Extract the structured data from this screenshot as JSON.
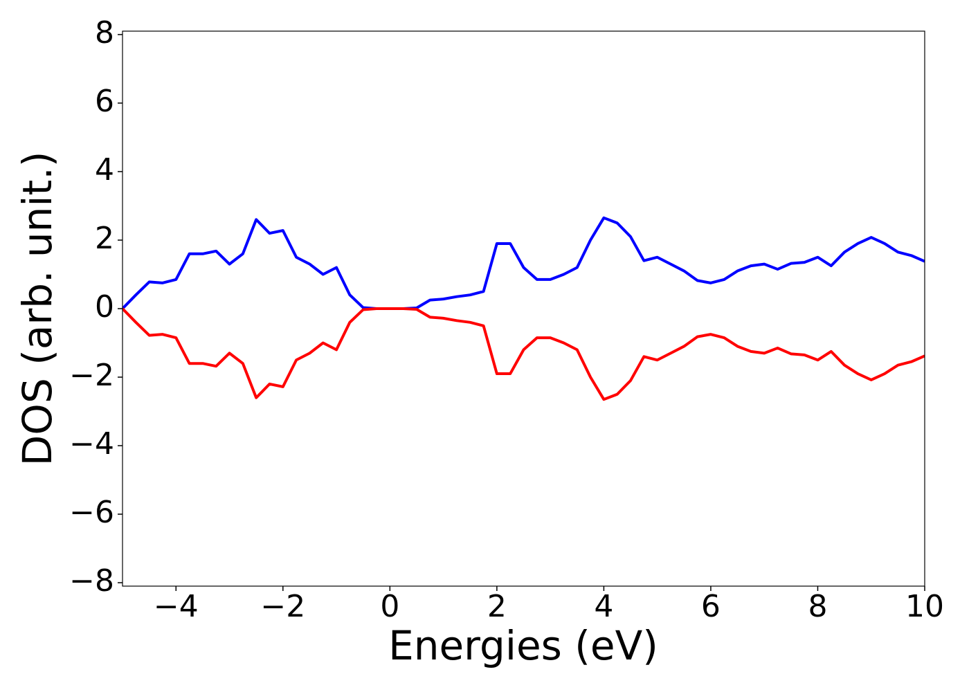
{
  "chart_data": {
    "type": "line",
    "xlabel": "Energies (eV)",
    "ylabel": "DOS (arb. unit.)",
    "x": [
      -5,
      -4.75,
      -4.5,
      -4.25,
      -4,
      -3.75,
      -3.5,
      -3.25,
      -3,
      -2.75,
      -2.5,
      -2.25,
      -2,
      -1.75,
      -1.5,
      -1.25,
      -1,
      -0.75,
      -0.5,
      -0.25,
      0,
      0.25,
      0.5,
      0.75,
      1,
      1.25,
      1.5,
      1.75,
      2,
      2.25,
      2.5,
      2.75,
      3,
      3.25,
      3.5,
      3.75,
      4,
      4.25,
      4.5,
      4.75,
      5,
      5.25,
      5.5,
      5.75,
      6,
      6.25,
      6.5,
      6.75,
      7,
      7.25,
      7.5,
      7.75,
      8,
      8.25,
      8.5,
      8.75,
      9,
      9.25,
      9.5,
      9.75,
      10
    ],
    "series": [
      {
        "color": "#0000ff",
        "values": [
          0,
          0.4,
          0.78,
          0.75,
          0.85,
          1.6,
          1.6,
          1.68,
          1.3,
          1.6,
          2.6,
          2.2,
          2.28,
          1.5,
          1.3,
          1.0,
          1.2,
          0.4,
          0.03,
          0,
          0,
          0,
          0.02,
          0.25,
          0.28,
          0.35,
          0.4,
          0.5,
          1.9,
          1.9,
          1.2,
          0.85,
          0.85,
          1.0,
          1.2,
          2.0,
          2.65,
          2.5,
          2.1,
          1.4,
          1.5,
          1.3,
          1.1,
          0.82,
          0.75,
          0.85,
          1.1,
          1.25,
          1.3,
          1.15,
          1.32,
          1.35,
          1.5,
          1.25,
          1.65,
          1.9,
          2.08,
          1.9,
          1.65,
          1.55,
          1.38
        ]
      },
      {
        "color": "#ff0000",
        "values": [
          0,
          -0.4,
          -0.78,
          -0.75,
          -0.85,
          -1.6,
          -1.6,
          -1.68,
          -1.3,
          -1.6,
          -2.6,
          -2.2,
          -2.28,
          -1.5,
          -1.3,
          -1.0,
          -1.2,
          -0.4,
          -0.03,
          0,
          0,
          0,
          -0.02,
          -0.25,
          -0.28,
          -0.35,
          -0.4,
          -0.5,
          -1.9,
          -1.9,
          -1.2,
          -0.85,
          -0.85,
          -1.0,
          -1.2,
          -2.0,
          -2.65,
          -2.5,
          -2.1,
          -1.4,
          -1.5,
          -1.3,
          -1.1,
          -0.82,
          -0.75,
          -0.85,
          -1.1,
          -1.25,
          -1.3,
          -1.15,
          -1.32,
          -1.35,
          -1.5,
          -1.25,
          -1.65,
          -1.9,
          -2.08,
          -1.9,
          -1.65,
          -1.55,
          -1.38
        ]
      }
    ],
    "xlim": [
      -5,
      10
    ],
    "xticks": [
      {
        "value": -4,
        "label": "−4"
      },
      {
        "value": -2,
        "label": "−2"
      },
      0,
      2,
      4,
      6,
      8,
      10
    ],
    "ylim": [
      -8.1,
      8.1
    ],
    "yticks": [
      {
        "value": -8,
        "label": "−8"
      },
      {
        "value": -6,
        "label": "−6"
      },
      {
        "value": -4,
        "label": "−4"
      },
      {
        "value": -2,
        "label": "−2"
      },
      0,
      2,
      4,
      6,
      8
    ],
    "grid": false
  }
}
